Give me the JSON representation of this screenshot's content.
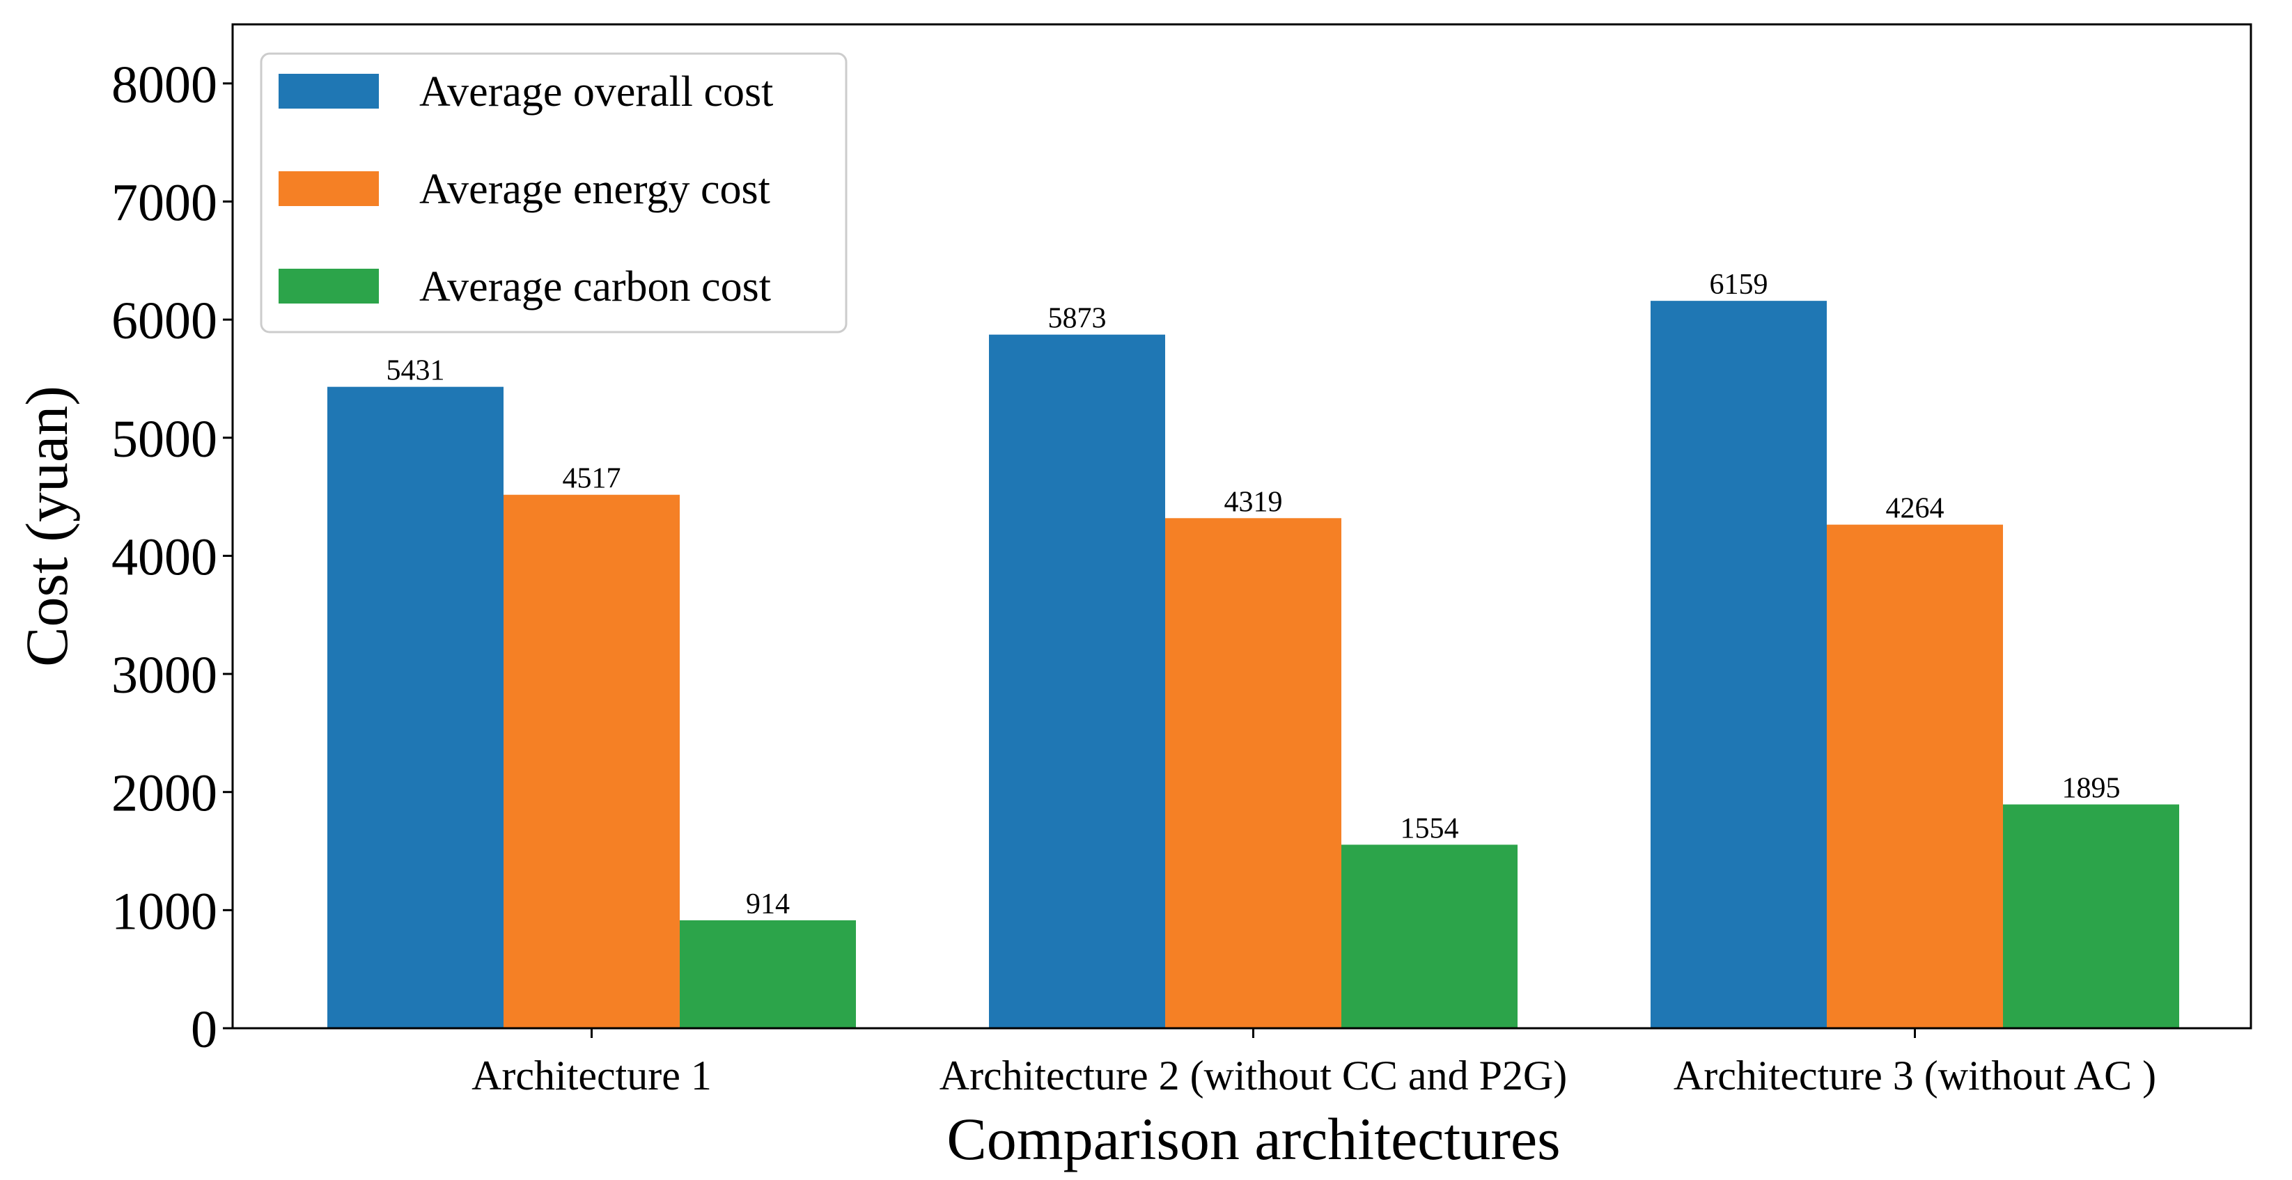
{
  "chart_data": {
    "type": "bar",
    "title": "",
    "xlabel": "Comparison architectures",
    "ylabel": "Cost (yuan)",
    "ylim": [
      0,
      8500
    ],
    "yticks": [
      0,
      1000,
      2000,
      3000,
      4000,
      5000,
      6000,
      7000,
      8000
    ],
    "ytick_labels": [
      "0",
      "1000",
      "2000",
      "3000",
      "4000",
      "5000",
      "6000",
      "7000",
      "8000"
    ],
    "grid": false,
    "legend_position": "top-left",
    "categories": [
      "Architecture 1",
      "Architecture 2 (without CC and P2G)",
      "Architecture 3 (without AC )"
    ],
    "series": [
      {
        "name": "Average overall cost",
        "color": "#1f77b4",
        "values": [
          5431,
          5873,
          6159
        ],
        "labels": [
          "5431",
          "5873",
          "6159"
        ]
      },
      {
        "name": "Average energy cost",
        "color": "#f58025",
        "values": [
          4517,
          4319,
          4264
        ],
        "labels": [
          "4517",
          "4319",
          "4264"
        ]
      },
      {
        "name": "Average carbon cost",
        "color": "#2ca44a",
        "values": [
          914,
          1554,
          1895
        ],
        "labels": [
          "914",
          "1554",
          "1895"
        ]
      }
    ]
  }
}
